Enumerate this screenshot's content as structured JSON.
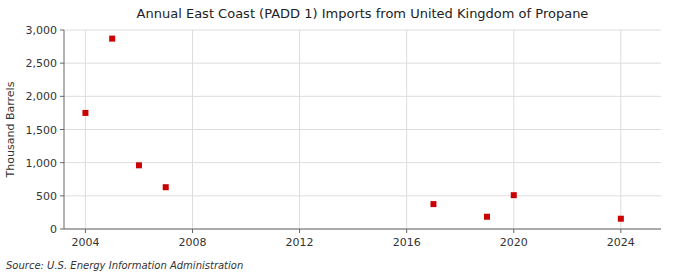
{
  "chart_data": {
    "type": "scatter",
    "title": "Annual East Coast (PADD 1) Imports from United Kingdom of Propane",
    "ylabel": "Thousand Barrels",
    "annotations": [
      "Source: U.S. Energy Information Administration"
    ],
    "x": [
      2004,
      2005,
      2006,
      2007,
      2017,
      2019,
      2020,
      2024
    ],
    "values": [
      1750,
      2870,
      960,
      630,
      375,
      185,
      510,
      155
    ],
    "color": "#cc0000",
    "marker": "square",
    "grid": true,
    "xlim": [
      2003.2,
      2025.5
    ],
    "ylim": [
      0,
      3000
    ],
    "xticks": [
      2004,
      2008,
      2012,
      2016,
      2020,
      2024
    ],
    "yticks": [
      0,
      500,
      {
        "value": 1000,
        "label": "1,000"
      },
      {
        "value": 1500,
        "label": "1,500"
      },
      {
        "value": 2000,
        "label": "2,000"
      },
      {
        "value": 2500,
        "label": "2,500"
      },
      {
        "value": 3000,
        "label": "3,000"
      }
    ]
  }
}
